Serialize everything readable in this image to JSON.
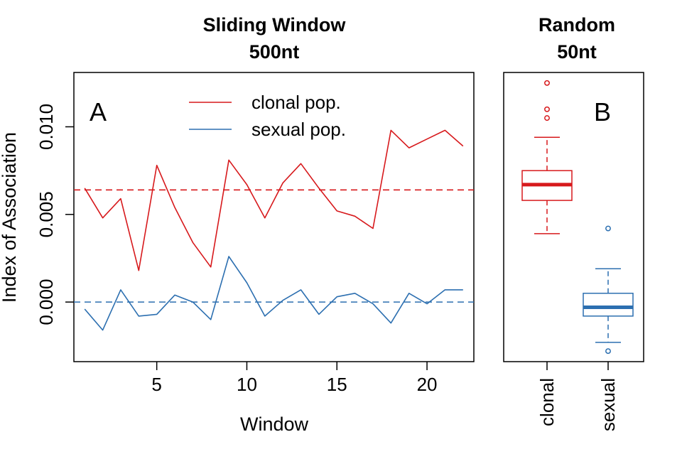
{
  "chart_data": [
    {
      "type": "line",
      "title": "Sliding Window",
      "subtitle": "500nt",
      "panel_label": "A",
      "xlabel": "Window",
      "ylabel": "Index of Association",
      "xlim": [
        0.4,
        22.6
      ],
      "ylim": [
        -0.0034,
        0.0131
      ],
      "xticks": [
        5,
        10,
        15,
        20
      ],
      "yticks": [
        0.0,
        0.005,
        0.01
      ],
      "ytick_labels": [
        "0.000",
        "0.005",
        "0.010"
      ],
      "legend_position": "top",
      "x": [
        1,
        2,
        3,
        4,
        5,
        6,
        7,
        8,
        9,
        10,
        11,
        12,
        13,
        14,
        15,
        16,
        17,
        18,
        19,
        20,
        21,
        22
      ],
      "series": [
        {
          "name": "clonal pop.",
          "color": "#D7191C",
          "values": [
            0.0065,
            0.0048,
            0.0059,
            0.0018,
            0.0078,
            0.0054,
            0.0034,
            0.002,
            0.0081,
            0.0067,
            0.0048,
            0.0068,
            0.0079,
            0.0065,
            0.0052,
            0.0049,
            0.0042,
            0.0098,
            0.0088,
            0.0093,
            0.0098,
            0.0089
          ],
          "reference_line": 0.0064
        },
        {
          "name": "sexual pop.",
          "color": "#2C6FB0",
          "values": [
            -0.0004,
            -0.0016,
            0.0007,
            -0.0008,
            -0.0007,
            0.0004,
            0.0,
            -0.001,
            0.0026,
            0.0011,
            -0.0008,
            0.0001,
            0.0007,
            -0.0007,
            0.0003,
            0.0005,
            -0.0001,
            -0.0012,
            0.0005,
            -0.0001,
            0.0007,
            0.0007
          ],
          "reference_line": 0.0
        }
      ]
    },
    {
      "type": "boxplot",
      "title": "Random",
      "subtitle": "50nt",
      "panel_label": "B",
      "ylim": [
        -0.0034,
        0.0131
      ],
      "categories": [
        "clonal",
        "sexual"
      ],
      "boxes": [
        {
          "name": "clonal",
          "color": "#D7191C",
          "whisker_low": 0.0039,
          "q1": 0.0058,
          "median": 0.0067,
          "q3": 0.0075,
          "whisker_high": 0.0094,
          "outliers": [
            0.0125,
            0.011,
            0.0105
          ]
        },
        {
          "name": "sexual",
          "color": "#2C6FB0",
          "whisker_low": -0.0023,
          "q1": -0.0008,
          "median": -0.0003,
          "q3": 0.0005,
          "whisker_high": 0.0019,
          "outliers": [
            0.0042,
            -0.0028
          ]
        }
      ]
    }
  ]
}
